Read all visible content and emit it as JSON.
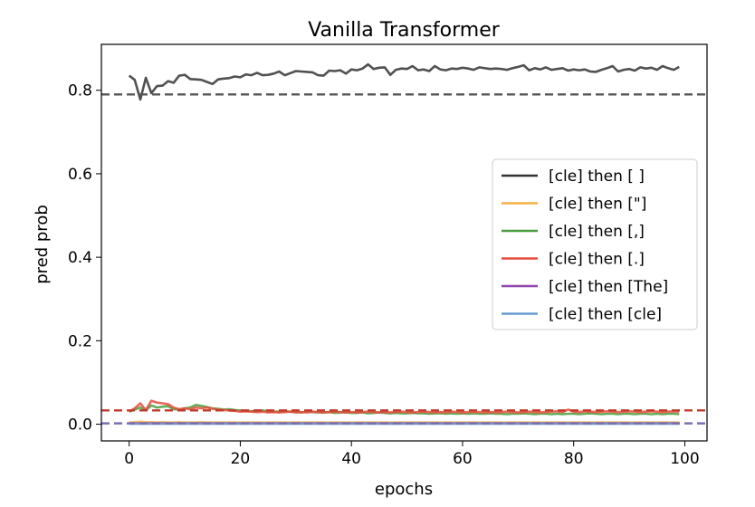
{
  "chart_data": {
    "type": "line",
    "title": "Vanilla Transformer",
    "xlabel": "epochs",
    "ylabel": "pred prob",
    "xlim": [
      -5,
      104
    ],
    "ylim": [
      -0.04,
      0.91
    ],
    "xticks": [
      0,
      20,
      40,
      60,
      80,
      100
    ],
    "yticks": [
      0.0,
      0.2,
      0.4,
      0.6,
      0.8
    ],
    "legend_position": "center-right",
    "grid": false,
    "reference_lines": [
      {
        "y": 0.79,
        "color": "#555555",
        "style": "dashed"
      },
      {
        "y": 0.033,
        "color": "#c0392b",
        "style": "dashed"
      },
      {
        "y": 0.002,
        "color": "#7a6fb0",
        "style": "dashed"
      }
    ],
    "series": [
      {
        "name": "[cle] then [ ]",
        "color": "#333333",
        "values": [
          0.835,
          0.825,
          0.778,
          0.83,
          0.793,
          0.81,
          0.811,
          0.822,
          0.818,
          0.835,
          0.837,
          0.827,
          0.826,
          0.825,
          0.82,
          0.815,
          0.826,
          0.828,
          0.829,
          0.833,
          0.831,
          0.838,
          0.836,
          0.842,
          0.836,
          0.837,
          0.84,
          0.845,
          0.836,
          0.841,
          0.846,
          0.845,
          0.844,
          0.843,
          0.836,
          0.835,
          0.847,
          0.846,
          0.848,
          0.84,
          0.85,
          0.848,
          0.852,
          0.862,
          0.851,
          0.854,
          0.855,
          0.837,
          0.849,
          0.852,
          0.851,
          0.858,
          0.848,
          0.85,
          0.846,
          0.858,
          0.85,
          0.848,
          0.852,
          0.851,
          0.854,
          0.852,
          0.849,
          0.855,
          0.853,
          0.851,
          0.852,
          0.851,
          0.849,
          0.853,
          0.856,
          0.86,
          0.848,
          0.853,
          0.85,
          0.855,
          0.849,
          0.851,
          0.853,
          0.847,
          0.85,
          0.848,
          0.85,
          0.845,
          0.844,
          0.849,
          0.853,
          0.858,
          0.845,
          0.849,
          0.851,
          0.847,
          0.855,
          0.852,
          0.854,
          0.849,
          0.858,
          0.853,
          0.849,
          0.856
        ]
      },
      {
        "name": "[cle] then [\"]",
        "color": "#f5b041",
        "values": [
          0.004,
          0.005,
          0.006,
          0.005,
          0.005,
          0.004,
          0.005,
          0.004,
          0.004,
          0.005,
          0.004,
          0.004,
          0.004,
          0.005,
          0.004,
          0.004,
          0.004,
          0.004,
          0.004,
          0.004,
          0.004,
          0.004,
          0.004,
          0.004,
          0.004,
          0.004,
          0.004,
          0.004,
          0.004,
          0.004,
          0.004,
          0.004,
          0.004,
          0.004,
          0.004,
          0.004,
          0.004,
          0.004,
          0.004,
          0.004,
          0.004,
          0.004,
          0.004,
          0.004,
          0.004,
          0.004,
          0.004,
          0.004,
          0.004,
          0.004,
          0.004,
          0.004,
          0.004,
          0.004,
          0.004,
          0.004,
          0.004,
          0.004,
          0.004,
          0.004,
          0.004,
          0.004,
          0.004,
          0.004,
          0.004,
          0.004,
          0.004,
          0.004,
          0.004,
          0.004,
          0.004,
          0.004,
          0.004,
          0.004,
          0.004,
          0.004,
          0.004,
          0.004,
          0.004,
          0.004,
          0.004,
          0.004,
          0.004,
          0.004,
          0.004,
          0.004,
          0.004,
          0.004,
          0.004,
          0.004,
          0.004,
          0.004,
          0.004,
          0.004,
          0.004,
          0.004,
          0.004,
          0.004,
          0.004,
          0.004
        ]
      },
      {
        "name": "[cle] then [,]",
        "color": "#4a9e3f",
        "values": [
          0.03,
          0.035,
          0.04,
          0.033,
          0.045,
          0.04,
          0.042,
          0.043,
          0.036,
          0.035,
          0.038,
          0.04,
          0.046,
          0.044,
          0.041,
          0.038,
          0.037,
          0.035,
          0.036,
          0.034,
          0.033,
          0.032,
          0.031,
          0.032,
          0.033,
          0.031,
          0.03,
          0.03,
          0.031,
          0.03,
          0.029,
          0.028,
          0.03,
          0.029,
          0.028,
          0.028,
          0.029,
          0.027,
          0.028,
          0.028,
          0.027,
          0.027,
          0.028,
          0.026,
          0.027,
          0.028,
          0.027,
          0.026,
          0.027,
          0.026,
          0.026,
          0.027,
          0.026,
          0.026,
          0.025,
          0.026,
          0.026,
          0.025,
          0.026,
          0.025,
          0.026,
          0.025,
          0.026,
          0.025,
          0.025,
          0.026,
          0.025,
          0.025,
          0.024,
          0.025,
          0.025,
          0.026,
          0.025,
          0.024,
          0.025,
          0.025,
          0.024,
          0.025,
          0.024,
          0.025,
          0.025,
          0.024,
          0.025,
          0.026,
          0.025,
          0.024,
          0.025,
          0.025,
          0.024,
          0.025,
          0.025,
          0.024,
          0.025,
          0.025,
          0.024,
          0.025,
          0.024,
          0.025,
          0.025,
          0.024
        ]
      },
      {
        "name": "[cle] then [.]",
        "color": "#e74c3c",
        "values": [
          0.03,
          0.038,
          0.05,
          0.034,
          0.056,
          0.052,
          0.05,
          0.048,
          0.04,
          0.036,
          0.038,
          0.036,
          0.04,
          0.038,
          0.04,
          0.037,
          0.035,
          0.034,
          0.033,
          0.032,
          0.03,
          0.031,
          0.03,
          0.029,
          0.03,
          0.028,
          0.029,
          0.028,
          0.029,
          0.03,
          0.028,
          0.029,
          0.028,
          0.03,
          0.029,
          0.028,
          0.029,
          0.03,
          0.029,
          0.028,
          0.029,
          0.028,
          0.029,
          0.03,
          0.029,
          0.028,
          0.029,
          0.028,
          0.029,
          0.03,
          0.029,
          0.028,
          0.029,
          0.03,
          0.029,
          0.028,
          0.029,
          0.028,
          0.03,
          0.029,
          0.028,
          0.029,
          0.03,
          0.029,
          0.028,
          0.029,
          0.028,
          0.029,
          0.03,
          0.029,
          0.028,
          0.029,
          0.03,
          0.029,
          0.028,
          0.029,
          0.03,
          0.031,
          0.029,
          0.035,
          0.03,
          0.029,
          0.031,
          0.03,
          0.029,
          0.03,
          0.031,
          0.03,
          0.029,
          0.03,
          0.031,
          0.03,
          0.029,
          0.03,
          0.031,
          0.03,
          0.029,
          0.03,
          0.031,
          0.03
        ]
      },
      {
        "name": "[cle] then [The]",
        "color": "#8e44ad",
        "values": [
          0.002,
          0.002,
          0.002,
          0.002,
          0.002,
          0.002,
          0.002,
          0.002,
          0.002,
          0.002,
          0.002,
          0.002,
          0.002,
          0.002,
          0.002,
          0.002,
          0.002,
          0.002,
          0.002,
          0.002,
          0.002,
          0.002,
          0.002,
          0.002,
          0.002,
          0.002,
          0.002,
          0.002,
          0.002,
          0.002,
          0.002,
          0.002,
          0.002,
          0.002,
          0.002,
          0.002,
          0.002,
          0.002,
          0.002,
          0.002,
          0.002,
          0.002,
          0.002,
          0.002,
          0.002,
          0.002,
          0.002,
          0.002,
          0.002,
          0.002,
          0.002,
          0.002,
          0.002,
          0.002,
          0.002,
          0.002,
          0.002,
          0.002,
          0.002,
          0.002,
          0.002,
          0.002,
          0.002,
          0.002,
          0.002,
          0.002,
          0.002,
          0.002,
          0.002,
          0.002,
          0.002,
          0.002,
          0.002,
          0.002,
          0.002,
          0.002,
          0.002,
          0.002,
          0.002,
          0.002,
          0.002,
          0.002,
          0.002,
          0.002,
          0.002,
          0.002,
          0.002,
          0.002,
          0.002,
          0.002,
          0.002,
          0.002,
          0.002,
          0.002,
          0.002,
          0.002,
          0.002,
          0.002,
          0.002,
          0.002
        ]
      },
      {
        "name": "[cle] then [cle]",
        "color": "#6a9bd1",
        "values": [
          0.001,
          0.001,
          0.001,
          0.001,
          0.001,
          0.001,
          0.001,
          0.001,
          0.001,
          0.001,
          0.001,
          0.001,
          0.001,
          0.001,
          0.001,
          0.001,
          0.001,
          0.001,
          0.001,
          0.001,
          0.001,
          0.001,
          0.001,
          0.001,
          0.001,
          0.001,
          0.001,
          0.001,
          0.001,
          0.001,
          0.001,
          0.001,
          0.001,
          0.001,
          0.001,
          0.001,
          0.001,
          0.001,
          0.001,
          0.001,
          0.001,
          0.001,
          0.001,
          0.001,
          0.001,
          0.001,
          0.001,
          0.001,
          0.001,
          0.001,
          0.001,
          0.001,
          0.001,
          0.001,
          0.001,
          0.001,
          0.001,
          0.001,
          0.001,
          0.001,
          0.001,
          0.001,
          0.001,
          0.001,
          0.001,
          0.001,
          0.001,
          0.001,
          0.001,
          0.001,
          0.001,
          0.001,
          0.001,
          0.001,
          0.001,
          0.001,
          0.001,
          0.001,
          0.001,
          0.001,
          0.001,
          0.001,
          0.001,
          0.001,
          0.001,
          0.001,
          0.001,
          0.001,
          0.001,
          0.001,
          0.001,
          0.001,
          0.001,
          0.001,
          0.001,
          0.001,
          0.001,
          0.001,
          0.001,
          0.001
        ]
      }
    ]
  }
}
